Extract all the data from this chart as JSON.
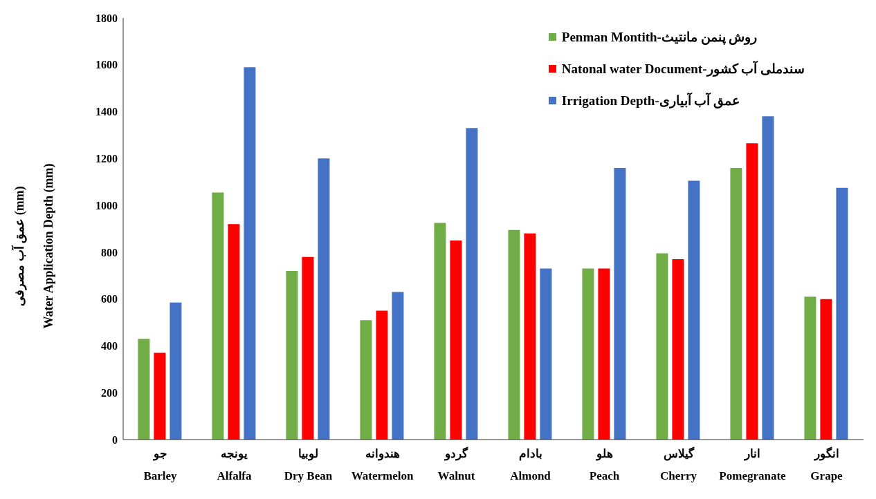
{
  "chart_data": {
    "type": "bar",
    "ylabel": "عمق آب مصرفی (mm)\nWater Application  Depth (mm)",
    "categories": [
      "جو\nBarley",
      "یونجه\nAlfalfa",
      "لوبیا\nDry Bean",
      "هندوانه\nWatermelon",
      "گردو\nWalnut",
      "بادام\nAlmond",
      "هلو\nPeach",
      "گیلاس\nCherry",
      "انار\nPomegranate",
      "انگور\nGrape"
    ],
    "series": [
      {
        "name": "Penman Montith-روش پنمن مانتیث",
        "color": "#70ad47",
        "values": [
          430,
          1055,
          720,
          510,
          925,
          895,
          730,
          795,
          1160,
          610
        ]
      },
      {
        "name": "Natonal water Document-سندملی آب کشور",
        "color": "#ff0000",
        "values": [
          370,
          920,
          780,
          550,
          850,
          880,
          730,
          770,
          1265,
          600
        ]
      },
      {
        "name": "Irrigation  Depth-عمق آب آبیاری",
        "color": "#4472c4",
        "values": [
          585,
          1590,
          1200,
          630,
          1330,
          730,
          1160,
          1105,
          1380,
          1075
        ]
      }
    ],
    "ylim": [
      0,
      1800
    ],
    "yticks": [
      0,
      200,
      400,
      600,
      800,
      1000,
      1200,
      1400,
      1600,
      1800
    ],
    "grid": false,
    "legend": "top right"
  }
}
